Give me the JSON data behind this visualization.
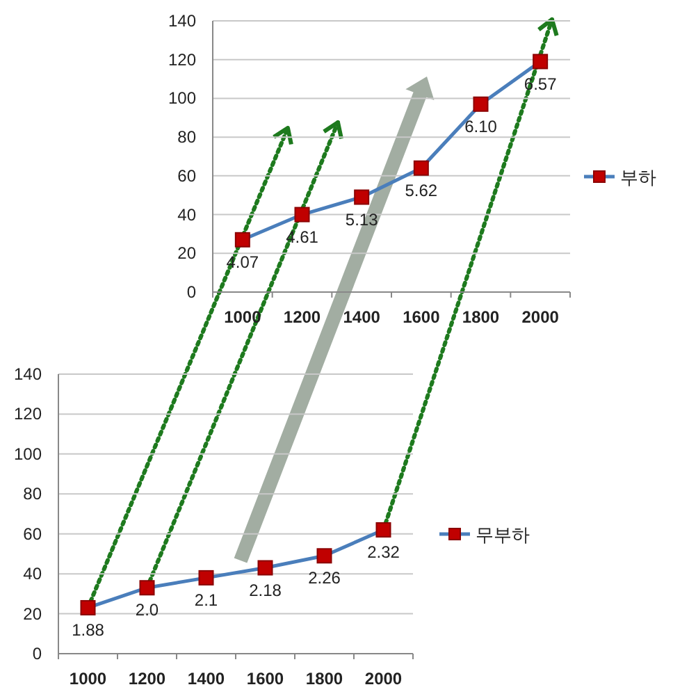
{
  "chart_data": [
    {
      "type": "line",
      "categories": [
        "1000",
        "1200",
        "1400",
        "1600",
        "1800",
        "2000"
      ],
      "series": [
        {
          "name": "부하",
          "color": "#4a7ebb",
          "colors": [
            "#c00000",
            "#c00000",
            "#c00000",
            "#c00000",
            "#c00000",
            "#c00000"
          ],
          "values": [
            27,
            40,
            49,
            64,
            97,
            119
          ]
        }
      ],
      "annotations": [
        {
          "text": "4.07",
          "x": "1000",
          "y": 27
        },
        {
          "text": "4.61",
          "x": "1200",
          "y": 40
        },
        {
          "text": "5.13",
          "x": "1400",
          "y": 49
        },
        {
          "text": "5.62",
          "x": "1600",
          "y": 64
        },
        {
          "text": "6.10",
          "x": "1800",
          "y": 97
        },
        {
          "text": "6.57",
          "x": "2000",
          "y": 119
        }
      ],
      "ylim": [
        0,
        140
      ],
      "yticks": [
        0,
        20,
        40,
        60,
        80,
        100,
        120,
        140
      ],
      "grid": "y",
      "legend": "right",
      "marker": "square",
      "line_style": "solid"
    },
    {
      "type": "line",
      "categories": [
        "1000",
        "1200",
        "1400",
        "1600",
        "1800",
        "2000"
      ],
      "series": [
        {
          "name": "무부하",
          "color": "#4a7ebb",
          "colors": [
            "#c00000",
            "#c00000",
            "#c00000",
            "#c00000",
            "#c00000",
            "#c00000"
          ],
          "values": [
            23,
            33,
            38,
            43,
            49,
            62
          ]
        }
      ],
      "annotations": [
        {
          "text": "1.88",
          "x": "1000",
          "y": 23
        },
        {
          "text": "2.0",
          "x": "1200",
          "y": 33
        },
        {
          "text": "2.1",
          "x": "1400",
          "y": 38
        },
        {
          "text": "2.18",
          "x": "1600",
          "y": 43
        },
        {
          "text": "2.26",
          "x": "1800",
          "y": 49
        },
        {
          "text": "2.32",
          "x": "2000",
          "y": 62
        }
      ],
      "ylim": [
        0,
        140
      ],
      "yticks": [
        0,
        20,
        40,
        60,
        80,
        100,
        120,
        140
      ],
      "grid": "y",
      "legend": "right",
      "marker": "square",
      "line_style": "solid"
    }
  ]
}
